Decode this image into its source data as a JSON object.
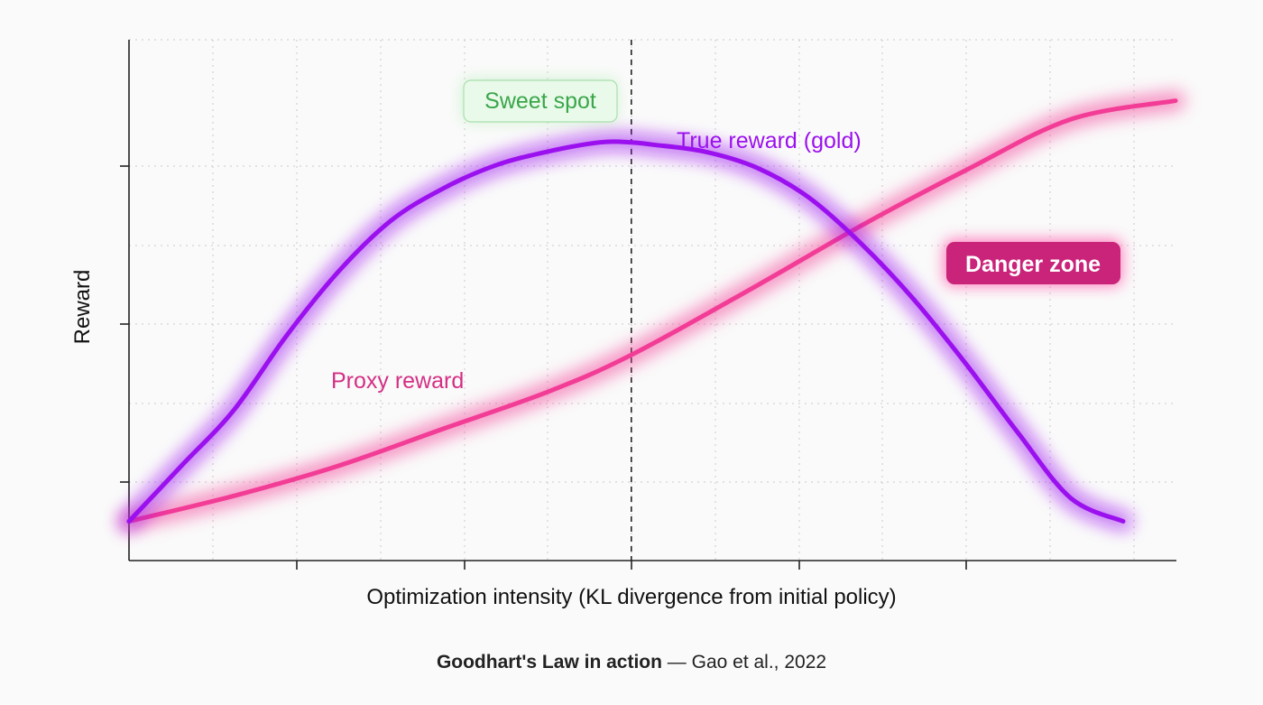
{
  "colors": {
    "true_reward": "#9b10ee",
    "proxy_reward": "#f23c95",
    "sweet_spot_text": "#3aa64a",
    "danger_bg": "#c9237a",
    "background": "#fafafa"
  },
  "chart_data": {
    "type": "line",
    "xlabel": "Optimization intensity (KL divergence from initial policy)",
    "ylabel": "Reward",
    "xlim": [
      0,
      10
    ],
    "ylim": [
      0,
      10
    ],
    "grid": true,
    "tick_labels_shown": false,
    "optimum_x": 4.8,
    "series": [
      {
        "name": "True reward (gold)",
        "color": "#9b10ee",
        "x": [
          0,
          0.5,
          1,
          1.5,
          2,
          2.5,
          3,
          3.5,
          4,
          4.5,
          4.8,
          5,
          5.5,
          6,
          6.5,
          7,
          7.5,
          8,
          8.5,
          9,
          9.5
        ],
        "values": [
          0.4,
          1.6,
          2.8,
          4.4,
          5.8,
          6.9,
          7.6,
          8.1,
          8.4,
          8.6,
          8.6,
          8.55,
          8.4,
          8.05,
          7.4,
          6.4,
          5.2,
          3.8,
          2.3,
          0.9,
          0.4
        ]
      },
      {
        "name": "Proxy reward",
        "color": "#f23c95",
        "x": [
          0,
          1,
          2,
          3,
          4,
          4.8,
          6,
          7,
          8,
          9,
          10
        ],
        "values": [
          0.4,
          0.95,
          1.6,
          2.4,
          3.2,
          4.0,
          5.5,
          6.8,
          8.0,
          9.1,
          9.5
        ]
      }
    ],
    "annotations": {
      "sweet_spot": "Sweet spot",
      "danger_zone": "Danger zone"
    }
  },
  "caption": {
    "bold": "Goodhart's Law in action",
    "rest": " — Gao et al., 2022"
  }
}
